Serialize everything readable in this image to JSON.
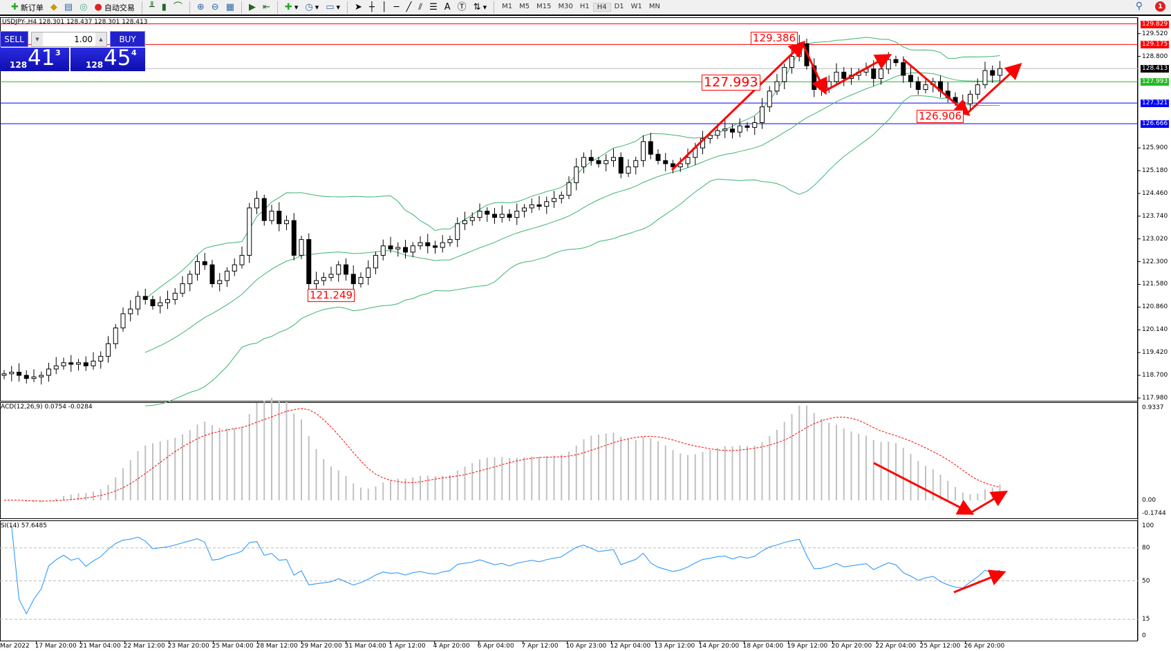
{
  "toolbar": {
    "new_order": "新订单",
    "auto_trading": "自动交易",
    "timeframes": [
      "M1",
      "M5",
      "M15",
      "M30",
      "H1",
      "H4",
      "D1",
      "W1",
      "MN"
    ],
    "active_timeframe": "H4",
    "notification_count": "1"
  },
  "symbol_info": "USDJPY-,H4  128.301 128.437 128.301 128.413",
  "one_click": {
    "sell_label": "SELL",
    "buy_label": "BUY",
    "lots": "1.00",
    "sell_small": "128",
    "sell_big": "41",
    "sell_tiny": "3",
    "buy_small": "128",
    "buy_big": "45",
    "buy_tiny": "4"
  },
  "colors": {
    "bull": "#ffffff",
    "bear": "#000000",
    "bands": "#3cb371",
    "rsi": "#1e90ff",
    "signal": "#ff0000",
    "hist": "#c0c0c0",
    "annotation": "#ff0000"
  },
  "price_axis": {
    "ticks": [
      "129.520",
      "128.800",
      "125.900",
      "125.180",
      "124.460",
      "123.740",
      "123.020",
      "122.300",
      "121.580",
      "120.860",
      "120.140",
      "119.420",
      "118.700",
      "117.980"
    ]
  },
  "levels": [
    {
      "price": "129.829",
      "color": "#ff0000"
    },
    {
      "price": "129.175",
      "color": "#ff0000"
    },
    {
      "price": "128.413",
      "color": "#000000"
    },
    {
      "price": "127.993",
      "color": "#22bb22"
    },
    {
      "price": "127.321",
      "color": "#0000ff"
    },
    {
      "price": "126.666",
      "color": "#0000ff"
    }
  ],
  "annotations": [
    "129.386",
    "127.993",
    "126.906",
    "121.249"
  ],
  "macd": {
    "label": "ACD(12,26,9) 0.0754 -0.0284",
    "ticks": [
      "0.9337",
      "0.00",
      "-0.1744"
    ]
  },
  "rsi": {
    "label": "SI(14) 57.6485",
    "ticks": [
      "100",
      "80",
      "50",
      "15",
      "0"
    ]
  },
  "time_axis": [
    "Mar 2022",
    "17 Mar 20:00",
    "21 Mar 04:00",
    "22 Mar 12:00",
    "23 Mar 20:00",
    "25 Mar 04:00",
    "28 Mar 12:00",
    "29 Mar 20:00",
    "31 Mar 04:00",
    "1 Apr 12:00",
    "4 Apr 20:00",
    "6 Apr 04:00",
    "7 Apr 12:00",
    "10 Apr 23:00",
    "12 Apr 04:00",
    "13 Apr 12:00",
    "14 Apr 20:00",
    "18 Apr 04:00",
    "19 Apr 12:00",
    "20 Apr 20:00",
    "22 Apr 04:00",
    "25 Apr 12:00",
    "26 Apr 20:00"
  ],
  "chart_data": {
    "type": "candlestick",
    "symbol": "USDJPY-",
    "timeframe": "H4",
    "ylim": [
      117.98,
      129.829
    ],
    "closes": [
      118.75,
      118.8,
      118.7,
      118.6,
      118.65,
      118.7,
      118.9,
      119.0,
      119.1,
      119.05,
      119.1,
      119.0,
      119.15,
      119.3,
      119.7,
      120.2,
      120.65,
      120.8,
      121.2,
      121.1,
      120.9,
      121.0,
      121.1,
      121.3,
      121.6,
      121.9,
      122.3,
      122.2,
      121.6,
      121.7,
      122.0,
      122.2,
      122.5,
      124.0,
      124.3,
      123.6,
      123.9,
      123.5,
      123.6,
      122.5,
      123.0,
      121.6,
      121.7,
      121.8,
      121.9,
      122.2,
      121.9,
      121.6,
      121.8,
      122.1,
      122.5,
      122.8,
      122.7,
      122.75,
      122.6,
      122.8,
      122.9,
      122.8,
      122.75,
      122.9,
      123.0,
      123.5,
      123.6,
      123.7,
      123.9,
      123.8,
      123.7,
      123.8,
      123.7,
      123.9,
      124.0,
      124.1,
      124.05,
      124.2,
      124.3,
      124.4,
      124.8,
      125.3,
      125.6,
      125.5,
      125.4,
      125.5,
      125.6,
      125.1,
      125.3,
      125.5,
      126.1,
      125.7,
      125.5,
      125.4,
      125.3,
      125.4,
      125.6,
      125.9,
      126.2,
      126.3,
      126.45,
      126.5,
      126.4,
      126.6,
      126.55,
      126.7,
      127.2,
      127.7,
      128.0,
      128.45,
      128.8,
      129.2,
      128.5,
      127.75,
      127.8,
      128.0,
      128.3,
      128.1,
      128.2,
      128.3,
      128.4,
      128.1,
      128.4,
      128.7,
      128.6,
      128.2,
      128.0,
      127.75,
      127.9,
      128.0,
      127.7,
      127.5,
      127.35,
      127.3,
      127.6,
      127.9,
      128.35,
      128.2,
      128.413
    ],
    "indicators": [
      "Bollinger Bands(20,2)",
      "MACD(12,26,9)",
      "RSI(14)"
    ]
  }
}
